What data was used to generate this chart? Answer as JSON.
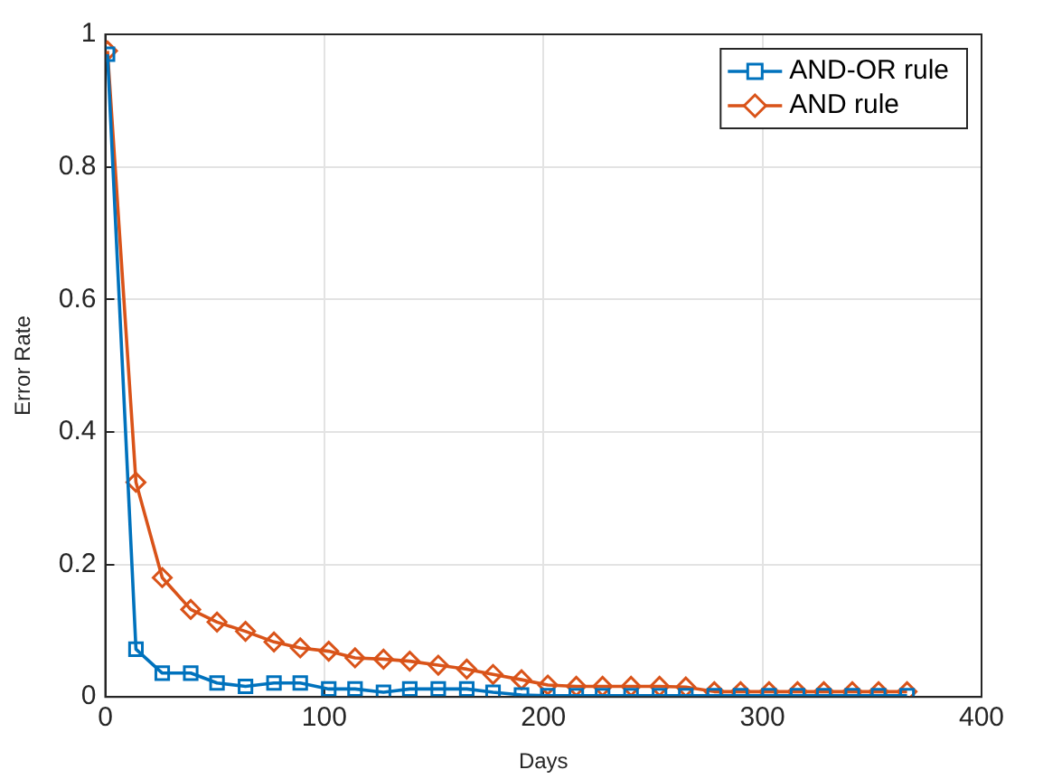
{
  "chart_data": {
    "type": "line",
    "xlabel": "Days",
    "ylabel": "Error Rate",
    "x": [
      1,
      14,
      26,
      39,
      51,
      64,
      77,
      89,
      102,
      114,
      127,
      139,
      152,
      165,
      177,
      190,
      202,
      215,
      227,
      240,
      253,
      265,
      278,
      290,
      303,
      316,
      328,
      341,
      353,
      366
    ],
    "series": [
      {
        "name": "AND-OR rule",
        "color": "#0072bd",
        "marker": "square",
        "values": [
          0.97,
          0.072,
          0.036,
          0.036,
          0.021,
          0.016,
          0.021,
          0.021,
          0.012,
          0.012,
          0.007,
          0.012,
          0.012,
          0.012,
          0.007,
          0.003,
          0.002,
          0.002,
          0.002,
          0.002,
          0.002,
          0.002,
          0.002,
          0.002,
          0.002,
          0.002,
          0.002,
          0.002,
          0.002,
          0.002
        ]
      },
      {
        "name": "AND rule",
        "color": "#d95319",
        "marker": "diamond",
        "values": [
          0.975,
          0.324,
          0.18,
          0.132,
          0.113,
          0.099,
          0.083,
          0.074,
          0.069,
          0.059,
          0.057,
          0.054,
          0.048,
          0.042,
          0.034,
          0.026,
          0.018,
          0.016,
          0.016,
          0.016,
          0.016,
          0.015,
          0.008,
          0.008,
          0.008,
          0.008,
          0.008,
          0.008,
          0.008,
          0.008
        ]
      }
    ],
    "xlim": [
      0,
      400
    ],
    "xticks": [
      0,
      100,
      200,
      300,
      400
    ],
    "ylim": [
      0,
      1
    ],
    "yticks": [
      0,
      0.2,
      0.4,
      0.6,
      0.8,
      1
    ],
    "grid": true,
    "legend": "top right",
    "line_style": "solid"
  }
}
